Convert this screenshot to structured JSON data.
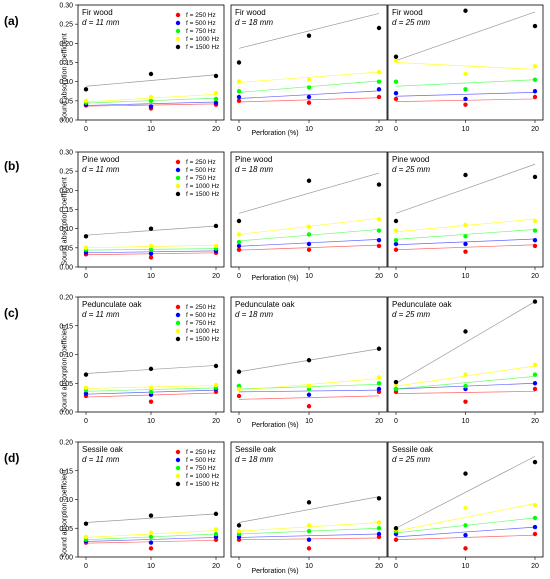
{
  "figure": {
    "row_labels": [
      "(a)",
      "(b)",
      "(c)",
      "(d)"
    ],
    "ylabel": "Sound absorption coefficient",
    "xlabel": "Perforation (%)",
    "x_ticks": [
      "0",
      "10",
      "20"
    ],
    "legend": [
      "f = 250 Hz",
      "f = 500 Hz",
      "f = 750 Hz",
      "f = 1000 Hz",
      "f = 1500 Hz"
    ],
    "colors": [
      "#ff0000",
      "#0000ff",
      "#00ff00",
      "#ffff00",
      "#000000"
    ]
  },
  "chart_data": [
    {
      "type": "scatter",
      "wood": "Fir wood",
      "thickness": "d = 11 mm",
      "x": [
        0,
        10,
        20
      ],
      "ylim": [
        0,
        0.3
      ],
      "yticks": [
        "0.00",
        "0.05",
        "0.10",
        "0.15",
        "0.20",
        "0.25",
        "0.30"
      ],
      "series": [
        {
          "name": "f = 250 Hz",
          "values": [
            0.038,
            0.03,
            0.04
          ]
        },
        {
          "name": "f = 500 Hz",
          "values": [
            0.04,
            0.035,
            0.045
          ]
        },
        {
          "name": "f = 750 Hz",
          "values": [
            0.045,
            0.05,
            0.055
          ]
        },
        {
          "name": "f = 1000 Hz",
          "values": [
            0.05,
            0.06,
            0.07
          ]
        },
        {
          "name": "f = 1500 Hz",
          "values": [
            0.08,
            0.12,
            0.115
          ]
        }
      ],
      "fits": [
        [
          0.036,
          0.042
        ],
        [
          0.038,
          0.047
        ],
        [
          0.044,
          0.057
        ],
        [
          0.047,
          0.067
        ],
        [
          0.088,
          0.118
        ]
      ]
    },
    {
      "type": "scatter",
      "wood": "Fir wood",
      "thickness": "d = 18 mm",
      "x": [
        0,
        10,
        20
      ],
      "ylim": [
        0,
        0.3
      ],
      "series": [
        {
          "name": "f = 250 Hz",
          "values": [
            0.05,
            0.045,
            0.06
          ]
        },
        {
          "name": "f = 500 Hz",
          "values": [
            0.06,
            0.06,
            0.08
          ]
        },
        {
          "name": "f = 750 Hz",
          "values": [
            0.075,
            0.085,
            0.1
          ]
        },
        {
          "name": "f = 1000 Hz",
          "values": [
            0.1,
            0.105,
            0.125
          ]
        },
        {
          "name": "f = 1500 Hz",
          "values": [
            0.15,
            0.22,
            0.24
          ]
        }
      ],
      "fits": [
        [
          0.047,
          0.058
        ],
        [
          0.056,
          0.076
        ],
        [
          0.072,
          0.102
        ],
        [
          0.098,
          0.125
        ],
        [
          0.187,
          0.278
        ]
      ]
    },
    {
      "type": "scatter",
      "wood": "Fir wood",
      "thickness": "d = 25 mm",
      "x": [
        0,
        10,
        20
      ],
      "ylim": [
        0,
        0.3
      ],
      "series": [
        {
          "name": "f = 250 Hz",
          "values": [
            0.055,
            0.04,
            0.06
          ]
        },
        {
          "name": "f = 500 Hz",
          "values": [
            0.07,
            0.055,
            0.075
          ]
        },
        {
          "name": "f = 750 Hz",
          "values": [
            0.1,
            0.08,
            0.105
          ]
        },
        {
          "name": "f = 1000 Hz",
          "values": [
            0.155,
            0.12,
            0.14
          ]
        },
        {
          "name": "f = 1500 Hz",
          "values": [
            0.165,
            0.285,
            0.245
          ]
        }
      ],
      "fits": [
        [
          0.048,
          0.055
        ],
        [
          0.062,
          0.072
        ],
        [
          0.088,
          0.105
        ],
        [
          0.15,
          0.132
        ],
        [
          0.155,
          0.282
        ]
      ]
    },
    {
      "type": "scatter",
      "wood": "Pine wood",
      "thickness": "d = 11 mm",
      "x": [
        0,
        10,
        20
      ],
      "ylim": [
        0,
        0.3
      ],
      "yticks": [
        "0.00",
        "0.05",
        "0.10",
        "0.15",
        "0.20",
        "0.25",
        "0.30"
      ],
      "series": [
        {
          "name": "f = 250 Hz",
          "values": [
            0.033,
            0.025,
            0.037
          ]
        },
        {
          "name": "f = 500 Hz",
          "values": [
            0.038,
            0.035,
            0.042
          ]
        },
        {
          "name": "f = 750 Hz",
          "values": [
            0.045,
            0.045,
            0.048
          ]
        },
        {
          "name": "f = 1000 Hz",
          "values": [
            0.05,
            0.055,
            0.055
          ]
        },
        {
          "name": "f = 1500 Hz",
          "values": [
            0.08,
            0.1,
            0.107
          ]
        }
      ],
      "fits": [
        [
          0.032,
          0.037
        ],
        [
          0.037,
          0.042
        ],
        [
          0.044,
          0.048
        ],
        [
          0.05,
          0.057
        ],
        [
          0.083,
          0.107
        ]
      ]
    },
    {
      "type": "scatter",
      "wood": "Pine wood",
      "thickness": "d = 18 mm",
      "x": [
        0,
        10,
        20
      ],
      "ylim": [
        0,
        0.3
      ],
      "series": [
        {
          "name": "f = 250 Hz",
          "values": [
            0.045,
            0.045,
            0.055
          ]
        },
        {
          "name": "f = 500 Hz",
          "values": [
            0.055,
            0.06,
            0.07
          ]
        },
        {
          "name": "f = 750 Hz",
          "values": [
            0.065,
            0.085,
            0.095
          ]
        },
        {
          "name": "f = 1000 Hz",
          "values": [
            0.085,
            0.105,
            0.125
          ]
        },
        {
          "name": "f = 1500 Hz",
          "values": [
            0.12,
            0.225,
            0.215
          ]
        }
      ],
      "fits": [
        [
          0.044,
          0.057
        ],
        [
          0.054,
          0.072
        ],
        [
          0.068,
          0.098
        ],
        [
          0.085,
          0.127
        ],
        [
          0.14,
          0.245
        ]
      ]
    },
    {
      "type": "scatter",
      "wood": "Pine wood",
      "thickness": "d = 25 mm",
      "x": [
        0,
        10,
        20
      ],
      "ylim": [
        0,
        0.3
      ],
      "series": [
        {
          "name": "f = 250 Hz",
          "values": [
            0.045,
            0.04,
            0.055
          ]
        },
        {
          "name": "f = 500 Hz",
          "values": [
            0.06,
            0.06,
            0.07
          ]
        },
        {
          "name": "f = 750 Hz",
          "values": [
            0.07,
            0.08,
            0.095
          ]
        },
        {
          "name": "f = 1000 Hz",
          "values": [
            0.095,
            0.11,
            0.12
          ]
        },
        {
          "name": "f = 1500 Hz",
          "values": [
            0.12,
            0.24,
            0.235
          ]
        }
      ],
      "fits": [
        [
          0.045,
          0.058
        ],
        [
          0.058,
          0.073
        ],
        [
          0.072,
          0.098
        ],
        [
          0.092,
          0.125
        ],
        [
          0.14,
          0.268
        ]
      ]
    },
    {
      "type": "scatter",
      "wood": "Pedunculate oak",
      "thickness": "d = 11 mm",
      "x": [
        0,
        10,
        20
      ],
      "ylim": [
        0,
        0.2
      ],
      "yticks": [
        "0.00",
        "0.05",
        "0.10",
        "0.15",
        "0.20"
      ],
      "series": [
        {
          "name": "f = 250 Hz",
          "values": [
            0.028,
            0.018,
            0.035
          ]
        },
        {
          "name": "f = 500 Hz",
          "values": [
            0.032,
            0.03,
            0.04
          ]
        },
        {
          "name": "f = 750 Hz",
          "values": [
            0.038,
            0.035,
            0.042
          ]
        },
        {
          "name": "f = 1000 Hz",
          "values": [
            0.042,
            0.042,
            0.047
          ]
        },
        {
          "name": "f = 1500 Hz",
          "values": [
            0.065,
            0.075,
            0.08
          ]
        }
      ],
      "fits": [
        [
          0.026,
          0.033
        ],
        [
          0.031,
          0.038
        ],
        [
          0.036,
          0.042
        ],
        [
          0.041,
          0.046
        ],
        [
          0.067,
          0.081
        ]
      ]
    },
    {
      "type": "scatter",
      "wood": "Pedunculate oak",
      "thickness": "d = 18 mm",
      "x": [
        0,
        10,
        20
      ],
      "ylim": [
        0,
        0.2
      ],
      "series": [
        {
          "name": "f = 250 Hz",
          "values": [
            0.028,
            0.01,
            0.035
          ]
        },
        {
          "name": "f = 500 Hz",
          "values": [
            0.045,
            0.03,
            0.04
          ]
        },
        {
          "name": "f = 750 Hz",
          "values": [
            0.045,
            0.04,
            0.05
          ]
        },
        {
          "name": "f = 1000 Hz",
          "values": [
            0.04,
            0.045,
            0.06
          ]
        },
        {
          "name": "f = 1500 Hz",
          "values": [
            0.07,
            0.09,
            0.11
          ]
        }
      ],
      "fits": [
        [
          0.022,
          0.028
        ],
        [
          0.035,
          0.038
        ],
        [
          0.04,
          0.048
        ],
        [
          0.038,
          0.058
        ],
        [
          0.07,
          0.11
        ]
      ]
    },
    {
      "type": "scatter",
      "wood": "Pedunculate oak",
      "thickness": "d = 25 mm",
      "x": [
        0,
        10,
        20
      ],
      "ylim": [
        0,
        0.2
      ],
      "series": [
        {
          "name": "f = 250 Hz",
          "values": [
            0.035,
            0.018,
            0.04
          ]
        },
        {
          "name": "f = 500 Hz",
          "values": [
            0.04,
            0.04,
            0.05
          ]
        },
        {
          "name": "f = 750 Hz",
          "values": [
            0.04,
            0.045,
            0.065
          ]
        },
        {
          "name": "f = 1000 Hz",
          "values": [
            0.048,
            0.065,
            0.082
          ]
        },
        {
          "name": "f = 1500 Hz",
          "values": [
            0.052,
            0.14,
            0.192
          ]
        }
      ],
      "fits": [
        [
          0.032,
          0.036
        ],
        [
          0.04,
          0.05
        ],
        [
          0.04,
          0.062
        ],
        [
          0.045,
          0.08
        ],
        [
          0.05,
          0.192
        ]
      ]
    },
    {
      "type": "scatter",
      "wood": "Sessile oak",
      "thickness": "d = 11 mm",
      "x": [
        0,
        10,
        20
      ],
      "ylim": [
        0,
        0.2
      ],
      "yticks": [
        "0.00",
        "0.05",
        "0.10",
        "0.15",
        "0.20"
      ],
      "series": [
        {
          "name": "f = 250 Hz",
          "values": [
            0.025,
            0.015,
            0.03
          ]
        },
        {
          "name": "f = 500 Hz",
          "values": [
            0.028,
            0.025,
            0.035
          ]
        },
        {
          "name": "f = 750 Hz",
          "values": [
            0.03,
            0.035,
            0.04
          ]
        },
        {
          "name": "f = 1000 Hz",
          "values": [
            0.035,
            0.042,
            0.048
          ]
        },
        {
          "name": "f = 1500 Hz",
          "values": [
            0.058,
            0.072,
            0.075
          ]
        }
      ],
      "fits": [
        [
          0.024,
          0.029
        ],
        [
          0.027,
          0.034
        ],
        [
          0.03,
          0.04
        ],
        [
          0.034,
          0.046
        ],
        [
          0.06,
          0.075
        ]
      ]
    },
    {
      "type": "scatter",
      "wood": "Sessile oak",
      "thickness": "d = 18 mm",
      "x": [
        0,
        10,
        20
      ],
      "ylim": [
        0,
        0.2
      ],
      "series": [
        {
          "name": "f = 250 Hz",
          "values": [
            0.03,
            0.015,
            0.035
          ]
        },
        {
          "name": "f = 500 Hz",
          "values": [
            0.035,
            0.03,
            0.04
          ]
        },
        {
          "name": "f = 750 Hz",
          "values": [
            0.04,
            0.045,
            0.05
          ]
        },
        {
          "name": "f = 1000 Hz",
          "values": [
            0.045,
            0.055,
            0.06
          ]
        },
        {
          "name": "f = 1500 Hz",
          "values": [
            0.055,
            0.095,
            0.102
          ]
        }
      ],
      "fits": [
        [
          0.03,
          0.033
        ],
        [
          0.034,
          0.04
        ],
        [
          0.04,
          0.05
        ],
        [
          0.045,
          0.06
        ],
        [
          0.06,
          0.105
        ]
      ]
    },
    {
      "type": "scatter",
      "wood": "Sessile oak",
      "thickness": "d = 25 mm",
      "x": [
        0,
        10,
        20
      ],
      "ylim": [
        0,
        0.2
      ],
      "series": [
        {
          "name": "f = 250 Hz",
          "values": [
            0.03,
            0.015,
            0.04
          ]
        },
        {
          "name": "f = 500 Hz",
          "values": [
            0.04,
            0.038,
            0.052
          ]
        },
        {
          "name": "f = 750 Hz",
          "values": [
            0.045,
            0.055,
            0.068
          ]
        },
        {
          "name": "f = 1000 Hz",
          "values": [
            0.048,
            0.085,
            0.09
          ]
        },
        {
          "name": "f = 1500 Hz",
          "values": [
            0.05,
            0.145,
            0.165
          ]
        }
      ],
      "fits": [
        [
          0.03,
          0.038
        ],
        [
          0.035,
          0.052
        ],
        [
          0.042,
          0.068
        ],
        [
          0.045,
          0.093
        ],
        [
          0.05,
          0.175
        ]
      ]
    }
  ]
}
